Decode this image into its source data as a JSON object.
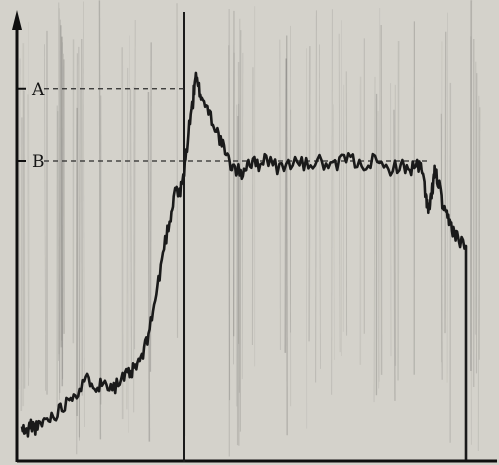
{
  "chart_data": {
    "type": "line",
    "title": "",
    "xlabel": "",
    "ylabel": "",
    "grid": false,
    "annotations": [
      {
        "label": "A",
        "y": 0.85
      },
      {
        "label": "B",
        "y": 0.68
      }
    ],
    "series": [
      {
        "x": [
          0,
          0.01,
          0.02,
          0.035,
          0.05,
          0.07,
          0.09,
          0.11,
          0.13,
          0.15,
          0.17,
          0.19,
          0.21,
          0.23,
          0.245,
          0.26,
          0.275,
          0.29,
          0.305,
          0.32,
          0.335,
          0.345,
          0.355,
          0.365,
          0.375,
          0.385,
          0.39,
          0.395,
          0.405,
          0.42,
          0.435,
          0.45,
          0.465,
          0.48,
          0.495,
          0.51,
          0.53,
          0.55,
          0.58,
          0.61,
          0.64,
          0.67,
          0.7,
          0.73,
          0.76,
          0.79,
          0.82,
          0.85,
          0.87,
          0.89,
          0.9,
          0.91,
          0.915,
          0.92,
          0.925,
          0.93,
          0.94,
          0.95,
          0.96,
          0.97,
          0.98,
          1.0
        ],
        "y": [
          0.05,
          0.04,
          0.06,
          0.05,
          0.07,
          0.08,
          0.1,
          0.13,
          0.14,
          0.17,
          0.15,
          0.16,
          0.15,
          0.17,
          0.18,
          0.2,
          0.23,
          0.3,
          0.38,
          0.48,
          0.55,
          0.62,
          0.6,
          0.65,
          0.75,
          0.82,
          0.88,
          0.86,
          0.83,
          0.8,
          0.76,
          0.72,
          0.68,
          0.66,
          0.65,
          0.68,
          0.67,
          0.69,
          0.66,
          0.68,
          0.67,
          0.68,
          0.66,
          0.69,
          0.67,
          0.68,
          0.66,
          0.67,
          0.66,
          0.67,
          0.66,
          0.6,
          0.56,
          0.58,
          0.62,
          0.66,
          0.62,
          0.56,
          0.54,
          0.52,
          0.5,
          0.48
        ]
      }
    ]
  },
  "colors": {
    "background": "#d4d2cb",
    "trace": "#1a1a1a",
    "axis": "#0f0f0f",
    "streak": "#2a2a2a"
  }
}
